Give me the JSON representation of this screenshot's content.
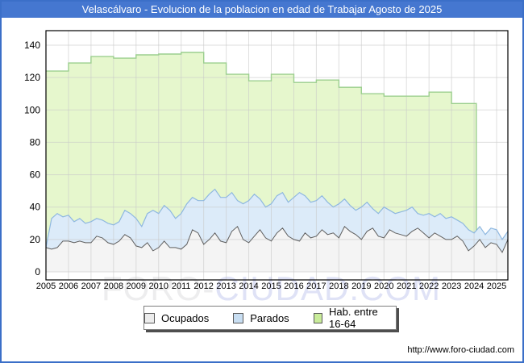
{
  "title": {
    "text": "Velascálvaro - Evolucion de la poblacion en edad de Trabajar Agosto de 2025",
    "bar_color": "#4577d0",
    "text_color": "#ffffff"
  },
  "watermark": {
    "part1": "FORO-",
    "part2": "CIUDAD.COM"
  },
  "footer": {
    "url": "http://www.foro-ciudad.com"
  },
  "legend": {
    "items": [
      {
        "label": "Ocupados",
        "swatch_color": "#ececec",
        "swatch_name": "ocupados-swatch"
      },
      {
        "label": "Parados",
        "swatch_color": "#c8def2",
        "swatch_name": "parados-swatch"
      },
      {
        "label": "Hab. entre 16-64",
        "swatch_color": "#c9ec9a",
        "swatch_name": "hab-swatch"
      }
    ]
  },
  "chart_data": {
    "type": "area",
    "title": "Velascálvaro - Evolucion de la poblacion en edad de Trabajar Agosto de 2025",
    "xlabel": "",
    "ylabel": "",
    "xlim": [
      2005,
      2025.5
    ],
    "ylim": [
      0,
      140
    ],
    "y_ticks": [
      0,
      20,
      40,
      60,
      80,
      100,
      120,
      140
    ],
    "x_ticks": [
      2005,
      2006,
      2007,
      2008,
      2009,
      2010,
      2011,
      2012,
      2013,
      2014,
      2015,
      2016,
      2017,
      2018,
      2019,
      2020,
      2021,
      2022,
      2023,
      2024,
      2025
    ],
    "grid": true,
    "grid_color": "#c9c9c9",
    "axis_color": "#000000",
    "x_start": 2005,
    "x_step": 0.25,
    "series": [
      {
        "name": "Ocupados",
        "type": "stacked-area",
        "line_color": "#5f5f5f",
        "fill_color": "#f4f4f4",
        "values": [
          15,
          14,
          15,
          19,
          19,
          18,
          19,
          18,
          18,
          22,
          21,
          18,
          17,
          19,
          23,
          21,
          16,
          15,
          18,
          13,
          15,
          19,
          15,
          15,
          14,
          17,
          26,
          24,
          17,
          20,
          24,
          19,
          18,
          25,
          28,
          20,
          18,
          22,
          26,
          21,
          19,
          24,
          27,
          22,
          20,
          19,
          24,
          21,
          22,
          26,
          23,
          24,
          21,
          28,
          25,
          23,
          20,
          25,
          27,
          22,
          21,
          26,
          24,
          23,
          22,
          25,
          27,
          24,
          21,
          24,
          22,
          20,
          20,
          22,
          19,
          13,
          16,
          20,
          15,
          18,
          17,
          12,
          20
        ]
      },
      {
        "name": "Parados",
        "type": "stacked-area",
        "line_color": "#8fb8e0",
        "fill_color": "#dcebf9",
        "values": [
          0,
          19,
          21,
          15,
          16,
          13,
          14,
          12,
          13,
          11,
          11,
          12,
          12,
          12,
          15,
          15,
          17,
          13,
          18,
          25,
          21,
          22,
          23,
          18,
          22,
          25,
          20,
          20,
          27,
          28,
          27,
          27,
          28,
          24,
          16,
          22,
          26,
          26,
          19,
          19,
          23,
          23,
          22,
          21,
          26,
          30,
          23,
          22,
          22,
          21,
          20,
          16,
          21,
          17,
          16,
          15,
          20,
          18,
          12,
          14,
          19,
          12,
          12,
          14,
          16,
          15,
          9,
          11,
          15,
          10,
          14,
          13,
          14,
          10,
          11,
          13,
          8,
          8,
          8,
          9,
          9,
          8,
          5
        ]
      },
      {
        "name": "Hab. entre 16-64",
        "type": "step-area",
        "line_color": "#9ccf8f",
        "fill_color": "#e6f7cd",
        "points": [
          [
            2005,
            124
          ],
          [
            2006,
            129
          ],
          [
            2007,
            133
          ],
          [
            2008,
            132
          ],
          [
            2009,
            134
          ],
          [
            2010,
            134.5
          ],
          [
            2011,
            135.5
          ],
          [
            2012,
            129
          ],
          [
            2013,
            122
          ],
          [
            2014,
            118
          ],
          [
            2015,
            122
          ],
          [
            2016,
            117
          ],
          [
            2017,
            118.5
          ],
          [
            2018,
            114
          ],
          [
            2019,
            110
          ],
          [
            2020,
            108.5
          ],
          [
            2021,
            108.5
          ],
          [
            2022,
            111
          ],
          [
            2023,
            104
          ],
          [
            2024.1,
            104
          ]
        ],
        "end_x": 2024.1
      }
    ]
  }
}
